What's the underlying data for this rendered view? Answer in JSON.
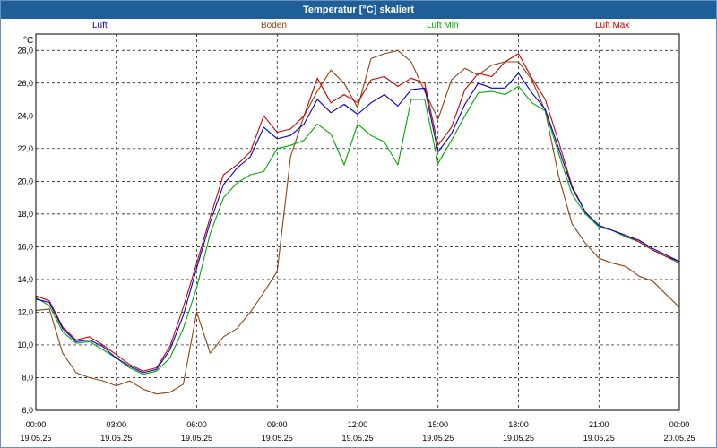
{
  "chart_data": {
    "type": "line",
    "title": "Temperatur [°C] skaliert",
    "ylabel": "°C",
    "xlabel": "",
    "ylim": [
      6.0,
      29.0
    ],
    "xlim": [
      0,
      24
    ],
    "grid": true,
    "y_ticks": [
      "6,0",
      "8,0",
      "10,0",
      "12,0",
      "14,0",
      "16,0",
      "18,0",
      "20,0",
      "22,0",
      "24,0",
      "26,0",
      "28,0"
    ],
    "x_ticks": [
      {
        "time": "00:00",
        "date": "19.05.25"
      },
      {
        "time": "03:00",
        "date": "19.05.25"
      },
      {
        "time": "06:00",
        "date": "19.05.25"
      },
      {
        "time": "09:00",
        "date": "19.05.25"
      },
      {
        "time": "12:00",
        "date": "19.05.25"
      },
      {
        "time": "15:00",
        "date": "19.05.25"
      },
      {
        "time": "18:00",
        "date": "19.05.25"
      },
      {
        "time": "21:00",
        "date": "19.05.25"
      },
      {
        "time": "00:00",
        "date": "20.05.25"
      }
    ],
    "x": [
      0,
      0.5,
      1,
      1.5,
      2,
      2.5,
      3,
      3.5,
      4,
      4.5,
      5,
      5.5,
      6,
      6.5,
      7,
      7.5,
      8,
      8.5,
      9,
      9.5,
      10,
      10.5,
      11,
      11.5,
      12,
      12.5,
      13,
      13.5,
      14,
      14.5,
      15,
      15.5,
      16,
      16.5,
      17,
      17.5,
      18,
      18.5,
      19,
      19.5,
      20,
      20.5,
      21,
      21.5,
      22,
      22.5,
      23,
      23.5,
      24
    ],
    "series": [
      {
        "name": "Luft",
        "color": "#0000cc",
        "values": [
          12.8,
          12.6,
          11.0,
          10.2,
          10.3,
          9.9,
          9.2,
          8.7,
          8.3,
          8.5,
          9.7,
          11.8,
          14.7,
          17.5,
          19.8,
          20.8,
          21.5,
          23.3,
          22.6,
          22.8,
          23.5,
          25.0,
          24.2,
          24.7,
          24.1,
          24.8,
          25.3,
          24.6,
          25.6,
          25.7,
          21.8,
          22.9,
          24.7,
          26.0,
          25.7,
          25.7,
          26.6,
          25.4,
          24.4,
          22.0,
          19.6,
          18.1,
          17.3,
          17.0,
          16.7,
          16.4,
          15.9,
          15.5,
          15.1
        ]
      },
      {
        "name": "Boden",
        "color": "#8b4513",
        "values": [
          12.1,
          12.2,
          9.5,
          8.3,
          8.0,
          7.8,
          7.5,
          7.8,
          7.3,
          7.0,
          7.1,
          7.6,
          12.0,
          9.5,
          10.5,
          11.0,
          12.0,
          13.2,
          14.5,
          21.5,
          24.0,
          25.5,
          26.8,
          26.0,
          24.5,
          27.5,
          27.8,
          28.0,
          27.3,
          25.5,
          23.8,
          26.2,
          26.9,
          26.5,
          27.1,
          27.3,
          27.3,
          26.2,
          24.3,
          20.3,
          17.4,
          16.2,
          15.3,
          15.0,
          14.8,
          14.2,
          13.9,
          13.1,
          12.3
        ]
      },
      {
        "name": "Luft Min",
        "color": "#00aa00",
        "values": [
          12.9,
          12.4,
          10.8,
          10.1,
          10.2,
          9.7,
          9.2,
          8.6,
          8.2,
          8.4,
          9.2,
          11.0,
          13.5,
          16.8,
          19.0,
          19.9,
          20.4,
          20.6,
          22.0,
          22.2,
          22.5,
          23.5,
          22.9,
          21.0,
          23.5,
          22.8,
          22.4,
          21.0,
          25.0,
          25.0,
          21.1,
          22.5,
          24.0,
          25.4,
          25.5,
          25.3,
          25.8,
          24.8,
          24.3,
          21.7,
          19.2,
          18.0,
          17.2,
          17.0,
          16.6,
          16.3,
          15.8,
          15.4,
          15.0
        ]
      },
      {
        "name": "Luft Max",
        "color": "#cc0000",
        "values": [
          13.0,
          12.7,
          11.1,
          10.3,
          10.5,
          10.0,
          9.4,
          8.8,
          8.4,
          8.6,
          9.9,
          12.3,
          15.0,
          17.8,
          20.4,
          21.0,
          21.8,
          24.0,
          23.0,
          23.2,
          24.0,
          26.3,
          24.8,
          25.3,
          24.8,
          26.2,
          26.4,
          25.8,
          26.3,
          26.0,
          22.2,
          23.3,
          25.6,
          26.6,
          26.4,
          27.3,
          27.8,
          26.3,
          25.0,
          22.4,
          19.7,
          18.1,
          17.3,
          17.0,
          16.7,
          16.3,
          15.8,
          15.4,
          15.1
        ]
      }
    ]
  }
}
